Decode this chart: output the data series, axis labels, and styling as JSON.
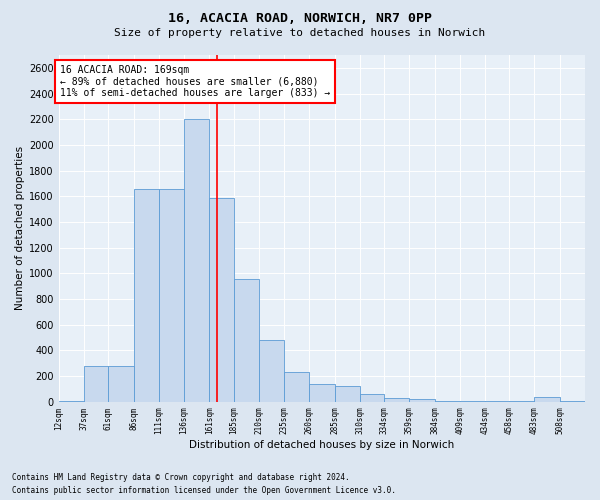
{
  "title1": "16, ACACIA ROAD, NORWICH, NR7 0PP",
  "title2": "Size of property relative to detached houses in Norwich",
  "xlabel": "Distribution of detached houses by size in Norwich",
  "ylabel": "Number of detached properties",
  "bar_color": "#c8d9ee",
  "bar_edge_color": "#5b9bd5",
  "bins": [
    12,
    37,
    61,
    86,
    111,
    136,
    161,
    185,
    210,
    235,
    260,
    285,
    310,
    334,
    359,
    384,
    409,
    434,
    458,
    483,
    508
  ],
  "values": [
    10,
    280,
    280,
    1660,
    1660,
    2200,
    1590,
    960,
    480,
    230,
    140,
    120,
    60,
    30,
    20,
    10,
    10,
    10,
    10,
    35,
    10
  ],
  "red_line_x": 169,
  "annotation_line1": "16 ACACIA ROAD: 169sqm",
  "annotation_line2": "← 89% of detached houses are smaller (6,880)",
  "annotation_line3": "11% of semi-detached houses are larger (833) →",
  "footnote1": "Contains HM Land Registry data © Crown copyright and database right 2024.",
  "footnote2": "Contains public sector information licensed under the Open Government Licence v3.0.",
  "ylim": [
    0,
    2700
  ],
  "yticks": [
    0,
    200,
    400,
    600,
    800,
    1000,
    1200,
    1400,
    1600,
    1800,
    2000,
    2200,
    2400,
    2600
  ],
  "bg_color": "#dce6f1",
  "plot_bg_color": "#e8f0f8",
  "grid_color": "#ffffff",
  "title1_fontsize": 9.5,
  "title2_fontsize": 8,
  "axis_label_fontsize": 7.5,
  "tick_fontsize": 7,
  "xtick_fontsize": 5.5,
  "footnote_fontsize": 5.5,
  "annotation_fontsize": 7
}
